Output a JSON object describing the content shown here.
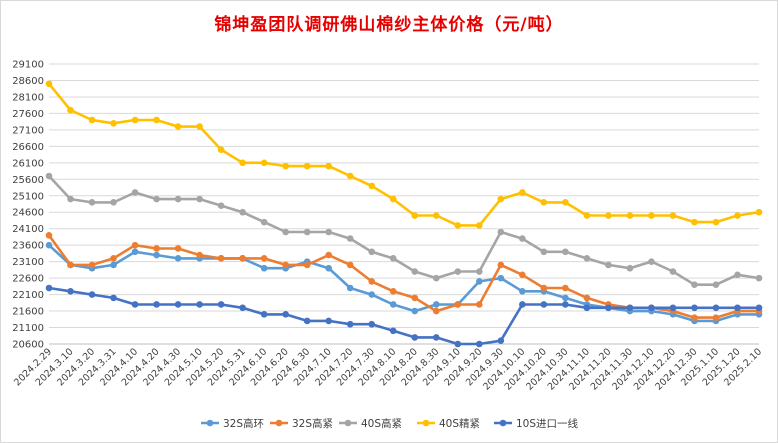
{
  "chart_data": {
    "type": "line",
    "title": "锦坤盈团队调研佛山棉纱主体价格（元/吨）",
    "xlabel": "",
    "ylabel": "",
    "ylim": [
      20600,
      29100
    ],
    "yticks": [
      29100,
      28600,
      28100,
      27600,
      27100,
      26600,
      26100,
      25600,
      25100,
      24600,
      24100,
      23600,
      23100,
      22600,
      22100,
      21600,
      21100,
      20600
    ],
    "grid": true,
    "legend_position": "bottom",
    "categories": [
      "2024.2.29",
      "2024.3.10",
      "2024.3.20",
      "2024.3.31",
      "2024.4.10",
      "2024.4.20",
      "2024.4.30",
      "2024.5.10",
      "2024.5.20",
      "2024.5.31",
      "2024.6.10",
      "2024.6.20",
      "2024.6.30",
      "2024.7.10",
      "2024.7.20",
      "2024.7.30",
      "2024.8.10",
      "2024.8.20",
      "2024.8.30",
      "2024.9.10",
      "2024.9.20",
      "2024.9.30",
      "2024.10.10",
      "2024.10.20",
      "2024.10.30",
      "2024.11.10",
      "2024.11.20",
      "2024.11.30",
      "2024.12.10",
      "2024.12.20",
      "2024.12.30",
      "2025.1.10",
      "2025.1.20",
      "2025.2.10"
    ],
    "series": [
      {
        "name": "32S高环",
        "color": "#5b9bd5",
        "values": [
          23600,
          23000,
          22900,
          23000,
          23400,
          23300,
          23200,
          23200,
          23200,
          23200,
          22900,
          22900,
          23100,
          22900,
          22300,
          22100,
          21800,
          21600,
          21800,
          21800,
          22500,
          22600,
          22200,
          22200,
          22000,
          21800,
          21700,
          21600,
          21600,
          21500,
          21300,
          21300,
          21500,
          21500
        ]
      },
      {
        "name": "32S高紧",
        "color": "#ed7d31",
        "values": [
          23900,
          23000,
          23000,
          23200,
          23600,
          23500,
          23500,
          23300,
          23200,
          23200,
          23200,
          23000,
          23000,
          23300,
          23000,
          22500,
          22200,
          22000,
          21600,
          21800,
          21800,
          23000,
          22700,
          22300,
          22300,
          22000,
          21800,
          21700,
          21700,
          21600,
          21400,
          21400,
          21600,
          21600
        ]
      },
      {
        "name": "40S高紧",
        "color": "#a5a5a5",
        "values": [
          25700,
          25000,
          24900,
          24900,
          25200,
          25000,
          25000,
          25000,
          24800,
          24600,
          24300,
          24000,
          24000,
          24000,
          23800,
          23400,
          23200,
          22800,
          22600,
          22800,
          22800,
          24000,
          23800,
          23400,
          23400,
          23200,
          23000,
          22900,
          23100,
          22800,
          22400,
          22400,
          22700,
          22600
        ]
      },
      {
        "name": "40S精紧",
        "color": "#ffc000",
        "values": [
          28500,
          27700,
          27400,
          27300,
          27400,
          27400,
          27200,
          27200,
          26500,
          26100,
          26100,
          26000,
          26000,
          26000,
          25700,
          25400,
          25000,
          24500,
          24500,
          24200,
          24200,
          25000,
          25200,
          24900,
          24900,
          24500,
          24500,
          24500,
          24500,
          24500,
          24300,
          24300,
          24500,
          24600
        ]
      },
      {
        "name": "10S进口一线",
        "color": "#4472c4",
        "values": [
          22300,
          22200,
          22100,
          22000,
          21800,
          21800,
          21800,
          21800,
          21800,
          21700,
          21500,
          21500,
          21300,
          21300,
          21200,
          21200,
          21000,
          20800,
          20800,
          20600,
          20600,
          20700,
          21800,
          21800,
          21800,
          21700,
          21700,
          21700,
          21700,
          21700,
          21700,
          21700,
          21700,
          21700
        ]
      }
    ]
  }
}
